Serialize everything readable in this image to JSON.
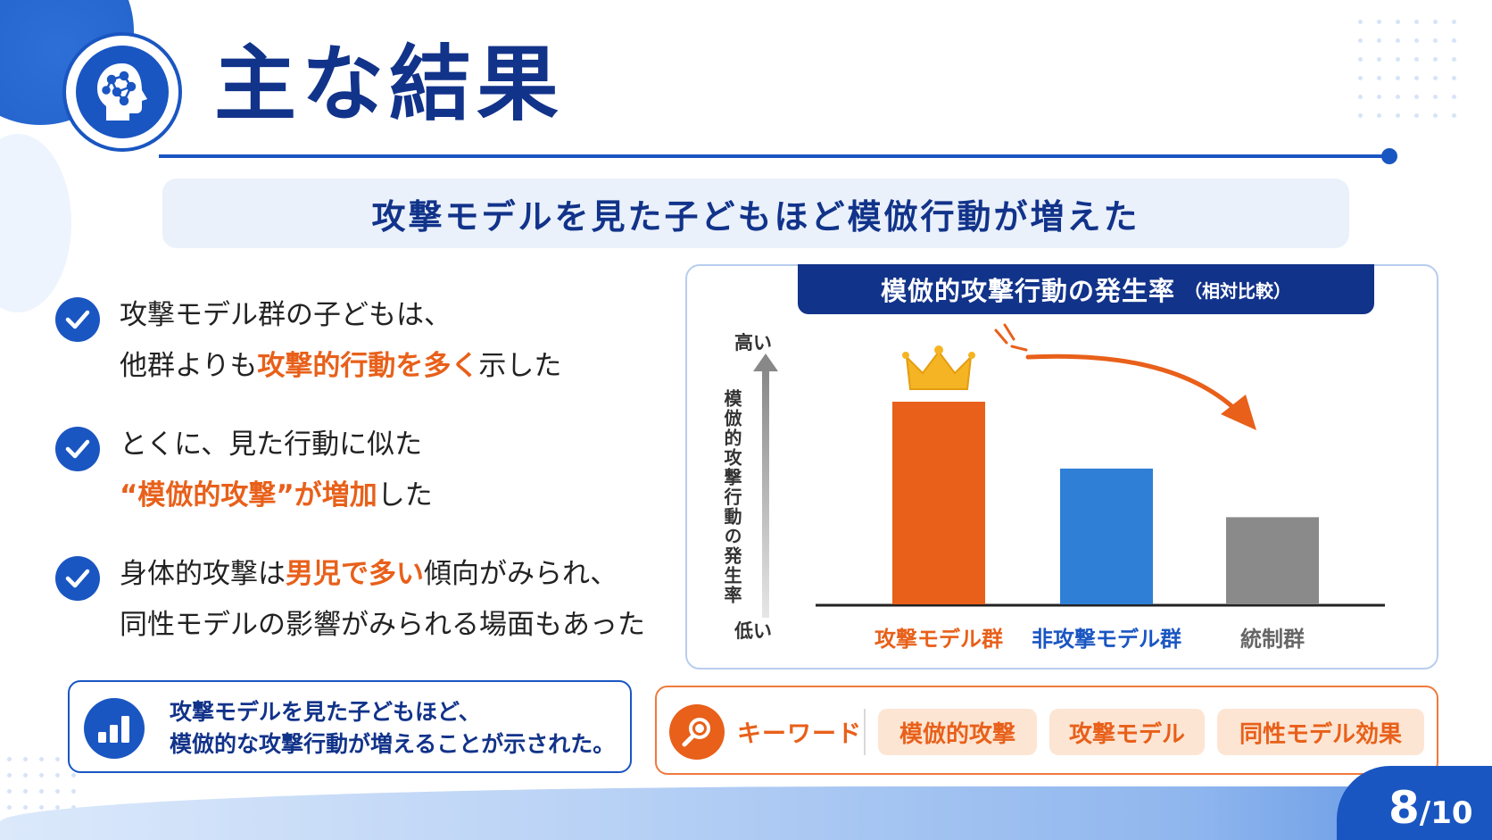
{
  "header": {
    "title": "主な結果",
    "subtitle": "攻撃モデルを見た子どもほど模倣行動が増えた"
  },
  "bullets": [
    {
      "lines": [
        [
          {
            "t": "攻撃モデル群の子どもは、",
            "hl": false
          }
        ],
        [
          {
            "t": "他群よりも",
            "hl": false
          },
          {
            "t": "攻撃的行動を多く",
            "hl": true
          },
          {
            "t": "示した",
            "hl": false
          }
        ]
      ]
    },
    {
      "lines": [
        [
          {
            "t": "とくに、見た行動に似た",
            "hl": false
          }
        ],
        [
          {
            "t": "“模倣的攻撃”が増加",
            "hl": true
          },
          {
            "t": "した",
            "hl": false
          }
        ]
      ]
    },
    {
      "lines": [
        [
          {
            "t": "身体的攻撃は",
            "hl": false
          },
          {
            "t": "男児で多い",
            "hl": true
          },
          {
            "t": "傾向がみられ、",
            "hl": false
          }
        ],
        [
          {
            "t": "同性モデルの影響がみられる場面もあった",
            "hl": false
          }
        ]
      ]
    }
  ],
  "summary": {
    "line1": "攻撃モデルを見た子どもほど、",
    "line2": "模倣的な攻撃行動が増えることが示された。",
    "icon": "bar-chart-icon"
  },
  "chart_data": {
    "type": "bar",
    "title": "模倣的攻撃行動の発生率",
    "title_note": "（相対比較）",
    "ylabel": "模倣的攻撃行動の発生率",
    "y_high_label": "高い",
    "y_low_label": "低い",
    "categories": [
      "攻撃モデル群",
      "非攻撃モデル群",
      "統制群"
    ],
    "values": [
      100,
      67,
      43
    ],
    "ylim": [
      0,
      100
    ],
    "colors": [
      "#e8601a",
      "#2f7fd6",
      "#8a8a8a"
    ],
    "label_colors": [
      "#e8601a",
      "#1a56c2",
      "#666666"
    ],
    "grid": false,
    "legend": "none"
  },
  "keywords": {
    "label": "キーワード",
    "items": [
      "模倣的攻撃",
      "攻撃モデル",
      "同性モデル効果"
    ]
  },
  "page": {
    "current": "8",
    "total": "/10"
  },
  "colors": {
    "primary": "#1a56c2",
    "navy": "#12338a",
    "accent": "#e8601a"
  }
}
